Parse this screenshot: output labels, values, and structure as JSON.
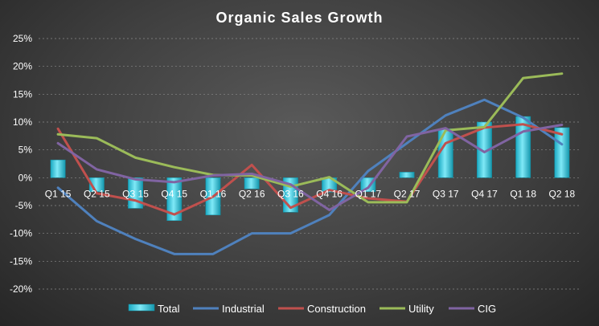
{
  "chart_data": {
    "type": "bar+line",
    "title": "Organic Sales Growth",
    "categories": [
      "Q1 15",
      "Q2 15",
      "Q3 15",
      "Q4 15",
      "Q1 16",
      "Q2 16",
      "Q3 16",
      "Q4 16",
      "Q1 17",
      "Q2 17",
      "Q3 17",
      "Q4 17",
      "Q1 18",
      "Q2 18"
    ],
    "ylim": [
      -20,
      25
    ],
    "yticks": [
      -20,
      -15,
      -10,
      -5,
      0,
      5,
      10,
      15,
      20,
      25
    ],
    "ytick_labels": [
      "-20%",
      "-15%",
      "-10%",
      "-5%",
      "0%",
      "5%",
      "10%",
      "15%",
      "20%",
      "25%"
    ],
    "grid": true,
    "legend_position": "bottom",
    "series": [
      {
        "name": "Total",
        "type": "bar",
        "color": "#3fd4ea",
        "values": [
          3.2,
          -2.5,
          -5.5,
          -7.7,
          -6.7,
          -2.0,
          -6.2,
          -2.6,
          -2.5,
          1.0,
          8.8,
          10.0,
          11.0,
          9.0
        ]
      },
      {
        "name": "Industrial",
        "type": "line",
        "color": "#4f81bd",
        "values": [
          -1.8,
          -7.8,
          -11.0,
          -13.7,
          -13.7,
          -10.0,
          -10.0,
          -6.7,
          1.2,
          6.2,
          11.2,
          14.0,
          10.8,
          6.0
        ]
      },
      {
        "name": "Construction",
        "type": "line",
        "color": "#c0504d",
        "values": [
          8.8,
          -2.8,
          -4.1,
          -6.6,
          -3.4,
          2.3,
          -5.4,
          -2.2,
          -3.7,
          -4.3,
          6.2,
          9.0,
          9.6,
          7.8
        ]
      },
      {
        "name": "Utility",
        "type": "line",
        "color": "#9bbb59",
        "values": [
          7.8,
          7.1,
          3.6,
          1.9,
          0.5,
          0.4,
          -1.6,
          0.1,
          -4.4,
          -4.4,
          8.5,
          9.1,
          17.9,
          18.7
        ]
      },
      {
        "name": "CIG",
        "type": "line",
        "color": "#8064a2",
        "values": [
          6.2,
          1.5,
          -0.3,
          -0.8,
          0.4,
          0.7,
          -1.2,
          -5.8,
          -1.8,
          7.4,
          8.9,
          4.6,
          8.3,
          9.5
        ]
      }
    ]
  }
}
